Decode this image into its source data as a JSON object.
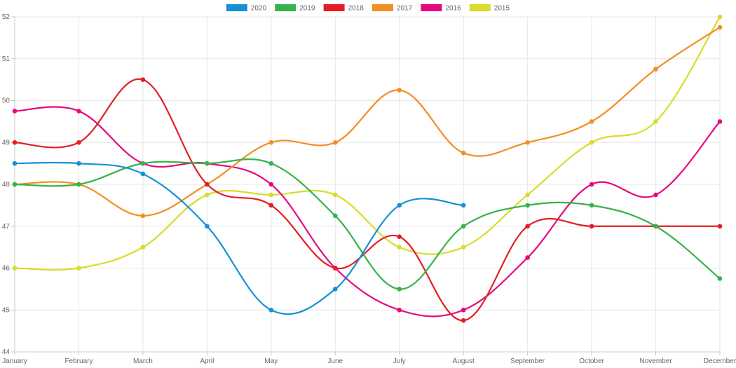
{
  "chart_data": {
    "type": "line",
    "title": "",
    "xlabel": "",
    "ylabel": "",
    "categories": [
      "January",
      "February",
      "March",
      "April",
      "May",
      "June",
      "July",
      "August",
      "September",
      "October",
      "November",
      "December"
    ],
    "y_ticks": [
      44,
      45,
      46,
      47,
      48,
      49,
      50,
      51,
      52
    ],
    "ylim": [
      44,
      52
    ],
    "grid": true,
    "legend_position": "top",
    "series": [
      {
        "name": "2020",
        "color": "#1591d6",
        "values": [
          48.5,
          48.5,
          48.25,
          47,
          45,
          45.5,
          47.5,
          47.5,
          null,
          null,
          null,
          null
        ]
      },
      {
        "name": "2019",
        "color": "#36b34a",
        "values": [
          48,
          48,
          48.5,
          48.5,
          48.5,
          47.25,
          45.5,
          47,
          47.5,
          47.5,
          47,
          45.75
        ]
      },
      {
        "name": "2018",
        "color": "#e31e25",
        "values": [
          49,
          49,
          50.5,
          48,
          47.5,
          46,
          46.75,
          44.75,
          47,
          47,
          47,
          47
        ]
      },
      {
        "name": "2017",
        "color": "#f28f22",
        "values": [
          48,
          48,
          47.25,
          48,
          49,
          49,
          50.25,
          48.75,
          49,
          49.5,
          50.75,
          51.75
        ]
      },
      {
        "name": "2016",
        "color": "#e6087f",
        "values": [
          49.75,
          49.75,
          48.5,
          48.5,
          48,
          46,
          45,
          45,
          46.25,
          48,
          47.75,
          49.5
        ]
      },
      {
        "name": "2015",
        "color": "#d8dc2a",
        "values": [
          46,
          46,
          46.5,
          47.75,
          47.75,
          47.75,
          46.5,
          46.5,
          47.75,
          49,
          49.5,
          52
        ]
      }
    ]
  }
}
